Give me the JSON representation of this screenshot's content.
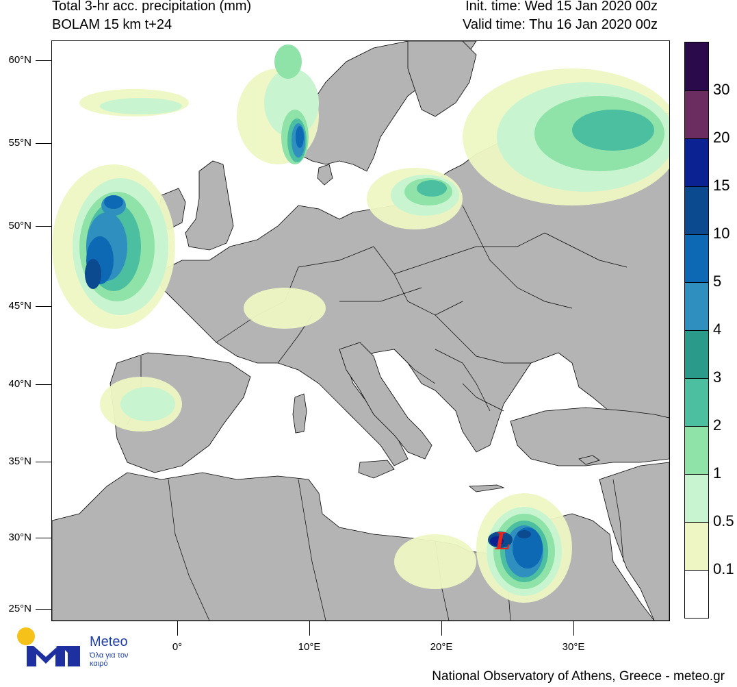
{
  "header": {
    "title": "Total 3-hr acc. precipitation (mm)",
    "model": "BOLAM 15 km t+24",
    "init_time": "Init. time: Wed 15 Jan 2020 00z",
    "valid_time": "Valid time: Thu 16 Jan 2020 00z"
  },
  "axes": {
    "lat_labels": [
      "60°N",
      "55°N",
      "50°N",
      "45°N",
      "40°N",
      "35°N",
      "30°N",
      "25°N"
    ],
    "lon_labels": [
      "0°",
      "10°E",
      "20°E",
      "30°E"
    ]
  },
  "colorbar": {
    "labels": [
      "30",
      "20",
      "15",
      "10",
      "5",
      "4",
      "3",
      "2",
      "1",
      "0.5",
      "0.1"
    ],
    "colors": [
      "#2a0a4a",
      "#6b2d5f",
      "#0b2392",
      "#0b4a8f",
      "#0d69b3",
      "#2f8fbf",
      "#2a9a8a",
      "#4bbf9f",
      "#8fe3a8",
      "#c8f5cf",
      "#eef7c4",
      "#ffffff"
    ]
  },
  "map": {
    "land_color": "#b4b4b4",
    "sea_color": "#ffffff",
    "border_color": "#000000",
    "low_marker": "L",
    "low_marker_color": "#e8231b"
  },
  "logo": {
    "name": "Meteo",
    "tagline": "Όλα για τον καιρό",
    "icon": "meteo-m-sun-logo"
  },
  "footer": "National Observatory of Athens, Greece - meteo.gr"
}
